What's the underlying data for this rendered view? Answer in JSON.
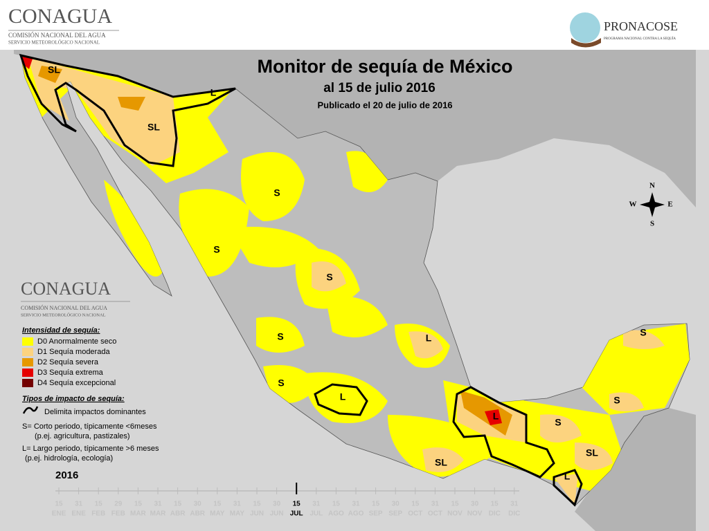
{
  "header": {
    "left_logo": {
      "name": "CONAGUA",
      "line1": "COMISIÓN NACIONAL DEL AGUA",
      "line2": "SERVICIO METEOROLÓGICO NACIONAL"
    },
    "right_logo": {
      "name": "PRONACOSE",
      "tagline": "PROGRAMA NACIONAL CONTRA LA SEQUÍA"
    }
  },
  "map": {
    "title": "Monitor de sequía de México",
    "date": "al 15 de julio 2016",
    "published": "Publicado el 20 de julio de 2016",
    "compass": {
      "n": "N",
      "s": "S",
      "e": "E",
      "w": "W"
    },
    "labels": [
      "SL",
      "L",
      "SL",
      "S",
      "S",
      "S",
      "S",
      "L",
      "S",
      "L",
      "L",
      "S",
      "S",
      "S",
      "SL",
      "SL",
      "L"
    ]
  },
  "legend": {
    "intensity_title": "Intensidad de sequía:",
    "categories": [
      {
        "label": "D0 Anormalmente seco",
        "color": "#ffff00"
      },
      {
        "label": "D1 Sequía moderada",
        "color": "#fcd37f"
      },
      {
        "label": "D2 Sequía severa",
        "color": "#e69800"
      },
      {
        "label": "D3 Sequía extrema",
        "color": "#e60000"
      },
      {
        "label": "D4 Sequía excepcional",
        "color": "#730000"
      }
    ],
    "impact_title": "Tipos de impacto de sequía:",
    "boundary": "Delimita impactos dominantes",
    "short": "S= Corto periodo, típicamente <6meses",
    "short_examples": "(p.ej. agricultura, pastizales)",
    "long": "L= Largo periodo, típicamente >6 meses",
    "long_examples": "(p.ej. hidrología, ecología)"
  },
  "timeline": {
    "year": 2016,
    "current": 12,
    "ticks": [
      {
        "day": 15,
        "month": "ENE"
      },
      {
        "day": 31,
        "month": "ENE"
      },
      {
        "day": 15,
        "month": "FEB"
      },
      {
        "day": 29,
        "month": "FEB"
      },
      {
        "day": 15,
        "month": "MAR"
      },
      {
        "day": 31,
        "month": "MAR"
      },
      {
        "day": 15,
        "month": "ABR"
      },
      {
        "day": 30,
        "month": "ABR"
      },
      {
        "day": 15,
        "month": "MAY"
      },
      {
        "day": 31,
        "month": "MAY"
      },
      {
        "day": 15,
        "month": "JUN"
      },
      {
        "day": 30,
        "month": "JUN"
      },
      {
        "day": 15,
        "month": "JUL"
      },
      {
        "day": 31,
        "month": "JUL"
      },
      {
        "day": 15,
        "month": "AGO"
      },
      {
        "day": 31,
        "month": "AGO"
      },
      {
        "day": 15,
        "month": "SEP"
      },
      {
        "day": 30,
        "month": "SEP"
      },
      {
        "day": 15,
        "month": "OCT"
      },
      {
        "day": 31,
        "month": "OCT"
      },
      {
        "day": 15,
        "month": "NOV"
      },
      {
        "day": 30,
        "month": "NOV"
      },
      {
        "day": 15,
        "month": "DIC"
      },
      {
        "day": 31,
        "month": "DIC"
      }
    ]
  }
}
